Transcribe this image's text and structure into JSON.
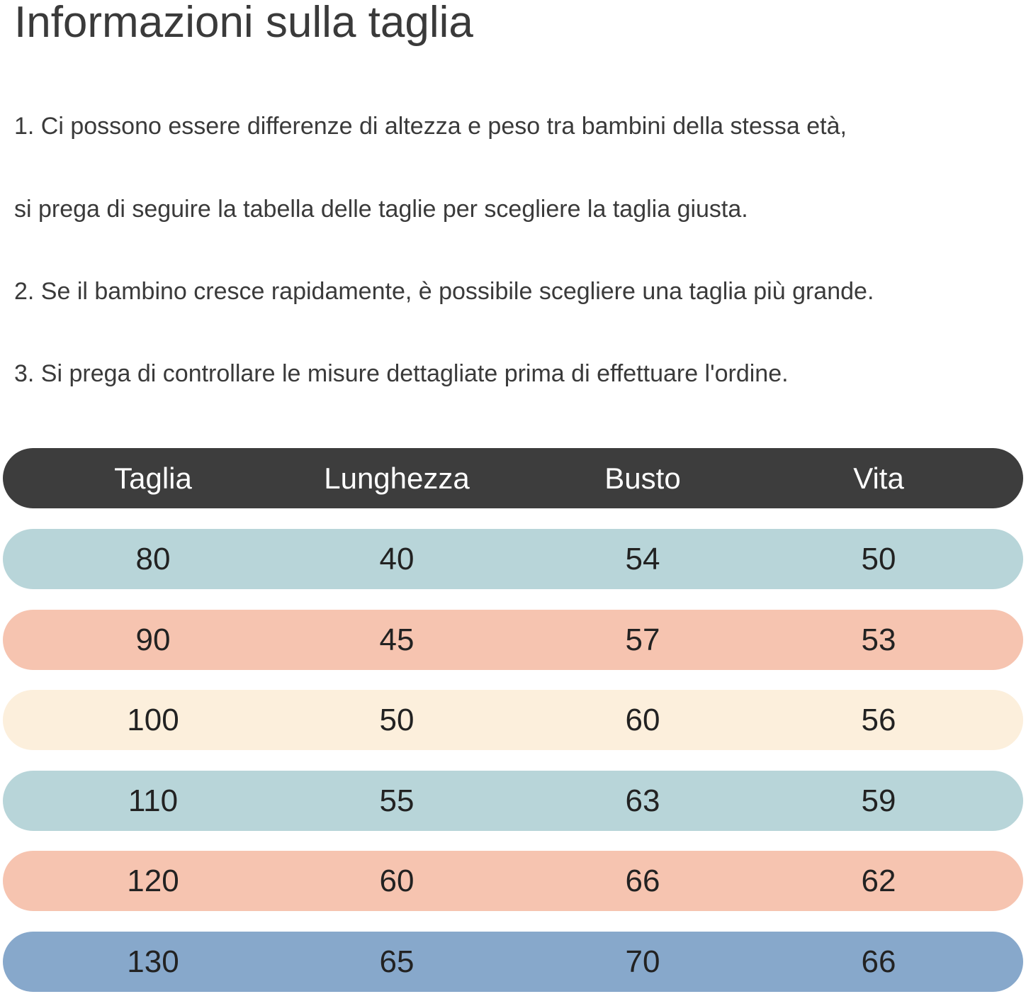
{
  "header": {
    "title": "Informazioni sulla taglia"
  },
  "notes": [
    "1. Ci possono essere differenze di altezza e peso tra bambini della stessa età,",
    "si prega di seguire la tabella delle taglie per scegliere la taglia giusta.",
    "2. Se il bambino cresce rapidamente, è possibile scegliere una taglia più grande.",
    "3. Si prega di controllare le misure dettagliate prima di effettuare l'ordine."
  ],
  "table": {
    "columns": [
      "Taglia",
      "Lunghezza",
      "Busto",
      "Vita"
    ],
    "rows": [
      [
        80,
        40,
        54,
        50
      ],
      [
        90,
        45,
        57,
        53
      ],
      [
        100,
        50,
        60,
        56
      ],
      [
        110,
        55,
        63,
        59
      ],
      [
        120,
        60,
        66,
        62
      ],
      [
        130,
        65,
        70,
        66
      ]
    ]
  }
}
